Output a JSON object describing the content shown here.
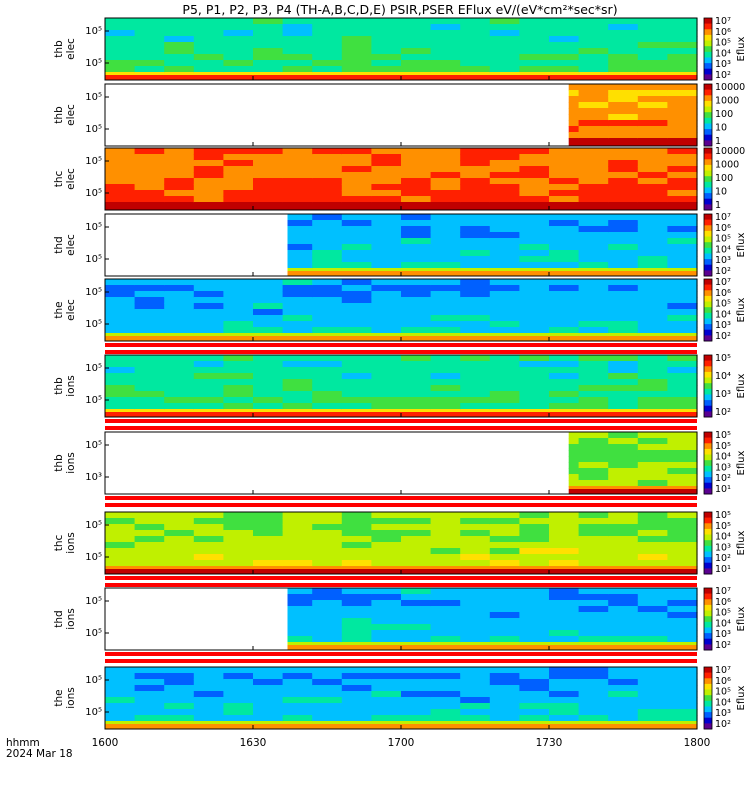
{
  "title": "P5, P1, P2, P3, P4 (TH-A,B,C,D,E) PSIR,PSER EFlux eV/(eV*cm²*sec*sr)",
  "footer": {
    "time_format": "hhmm",
    "date": "2024 Mar 18"
  },
  "chart_data": {
    "type": "heatmap",
    "x_tick_labels": [
      "1600",
      "1630",
      "1700",
      "1730",
      "1800"
    ],
    "x_ticks_hhmm": [
      "16:00",
      "16:30",
      "17:00",
      "17:30",
      "18:00"
    ],
    "xlim": [
      "16:00",
      "18:00"
    ],
    "colormap": [
      "#5a0090",
      "#0000d0",
      "#0060ff",
      "#00c0ff",
      "#00e8a0",
      "#40e040",
      "#c0f000",
      "#ffe000",
      "#ff9000",
      "#ff2000",
      "#c00000"
    ],
    "colorbar_label": "Eflux",
    "panels": [
      {
        "label": [
          "thb",
          "elec"
        ],
        "species": "elec",
        "probe": "thb",
        "data_start": "16:00",
        "cbar_ticks": [
          "10⁷",
          "10⁶",
          "10⁵",
          "10⁴",
          "10³",
          "10²"
        ],
        "cbar_title": "Eflux",
        "y_ticks": [
          "10⁵",
          "10⁵"
        ],
        "level": 0.42
      },
      {
        "label": [
          "thb",
          "elec"
        ],
        "species": "elec",
        "probe": "thb",
        "data_start": "17:34",
        "cbar_ticks": [
          "10000",
          "1000",
          "100",
          "10",
          "1"
        ],
        "cbar_title": "",
        "y_ticks": [
          "10⁵",
          "10⁵"
        ],
        "level": 0.8
      },
      {
        "label": [
          "thc",
          "elec"
        ],
        "species": "elec",
        "probe": "thc",
        "data_start": "16:00",
        "cbar_ticks": [
          "10000",
          "1000",
          "100",
          "10",
          "1"
        ],
        "cbar_title": "",
        "y_ticks": [
          "10⁵",
          "10⁵"
        ],
        "level": 0.85
      },
      {
        "label": [
          "thd",
          "elec"
        ],
        "species": "elec",
        "probe": "thd",
        "data_start": "16:37",
        "cbar_ticks": [
          "10⁷",
          "10⁶",
          "10⁵",
          "10⁴",
          "10³",
          "10²"
        ],
        "cbar_title": "Eflux",
        "y_ticks": [
          "10⁵",
          "10⁵"
        ],
        "level": 0.3
      },
      {
        "label": [
          "the",
          "elec"
        ],
        "species": "elec",
        "probe": "the",
        "data_start": "16:00",
        "cbar_ticks": [
          "10⁷",
          "10⁶",
          "10⁵",
          "10⁴",
          "10³",
          "10²"
        ],
        "cbar_title": "Eflux",
        "y_ticks": [
          "10⁵",
          "10⁵"
        ],
        "level": 0.3
      },
      {
        "label": [
          "thb",
          "ions"
        ],
        "species": "ions",
        "probe": "thb",
        "data_start": "16:00",
        "cbar_ticks": [
          "10⁵",
          "10⁴",
          "10³",
          "10²"
        ],
        "cbar_title": "Eflux",
        "y_ticks": [
          "10⁵",
          "10⁵"
        ],
        "level": 0.42
      },
      {
        "label": [
          "thb",
          "ions"
        ],
        "species": "ions",
        "probe": "thb",
        "data_start": "17:34",
        "cbar_ticks": [
          "10⁵",
          "10⁵",
          "10⁴",
          "10³",
          "10²",
          "10¹"
        ],
        "cbar_title": "Eflux",
        "y_ticks": [
          "10⁵",
          "10³"
        ],
        "level": 0.55
      },
      {
        "label": [
          "thc",
          "ions"
        ],
        "species": "ions",
        "probe": "thc",
        "data_start": "16:00",
        "cbar_ticks": [
          "10⁵",
          "10⁵",
          "10⁴",
          "10³",
          "10²",
          "10¹"
        ],
        "cbar_title": "Eflux",
        "y_ticks": [
          "10⁵",
          "10⁵"
        ],
        "level": 0.58
      },
      {
        "label": [
          "thd",
          "ions"
        ],
        "species": "ions",
        "probe": "thd",
        "data_start": "16:37",
        "cbar_ticks": [
          "10⁷",
          "10⁶",
          "10⁵",
          "10⁴",
          "10³",
          "10²"
        ],
        "cbar_title": "Eflux",
        "y_ticks": [
          "10⁵",
          "10⁵"
        ],
        "level": 0.3
      },
      {
        "label": [
          "the",
          "ions"
        ],
        "species": "ions",
        "probe": "the",
        "data_start": "16:00",
        "cbar_ticks": [
          "10⁷",
          "10⁶",
          "10⁵",
          "10⁴",
          "10³",
          "10²"
        ],
        "cbar_title": "Eflux",
        "y_ticks": [
          "10⁵",
          "10⁵"
        ],
        "level": 0.3
      }
    ]
  }
}
